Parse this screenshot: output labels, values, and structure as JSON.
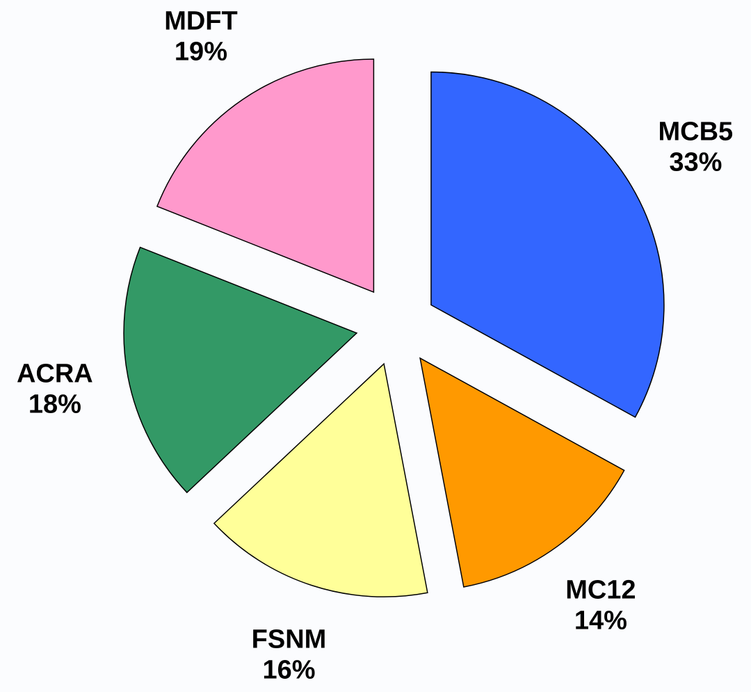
{
  "chart_data": {
    "type": "pie",
    "categories": [
      "MCB5",
      "MC12",
      "FSNM",
      "ACRA",
      "MDFT"
    ],
    "values": [
      33,
      14,
      16,
      18,
      19
    ],
    "value_labels": [
      "33%",
      "14%",
      "16%",
      "18%",
      "19%"
    ],
    "colors": [
      "#3366ff",
      "#ff9900",
      "#ffff99",
      "#339966",
      "#ff99cc"
    ]
  }
}
